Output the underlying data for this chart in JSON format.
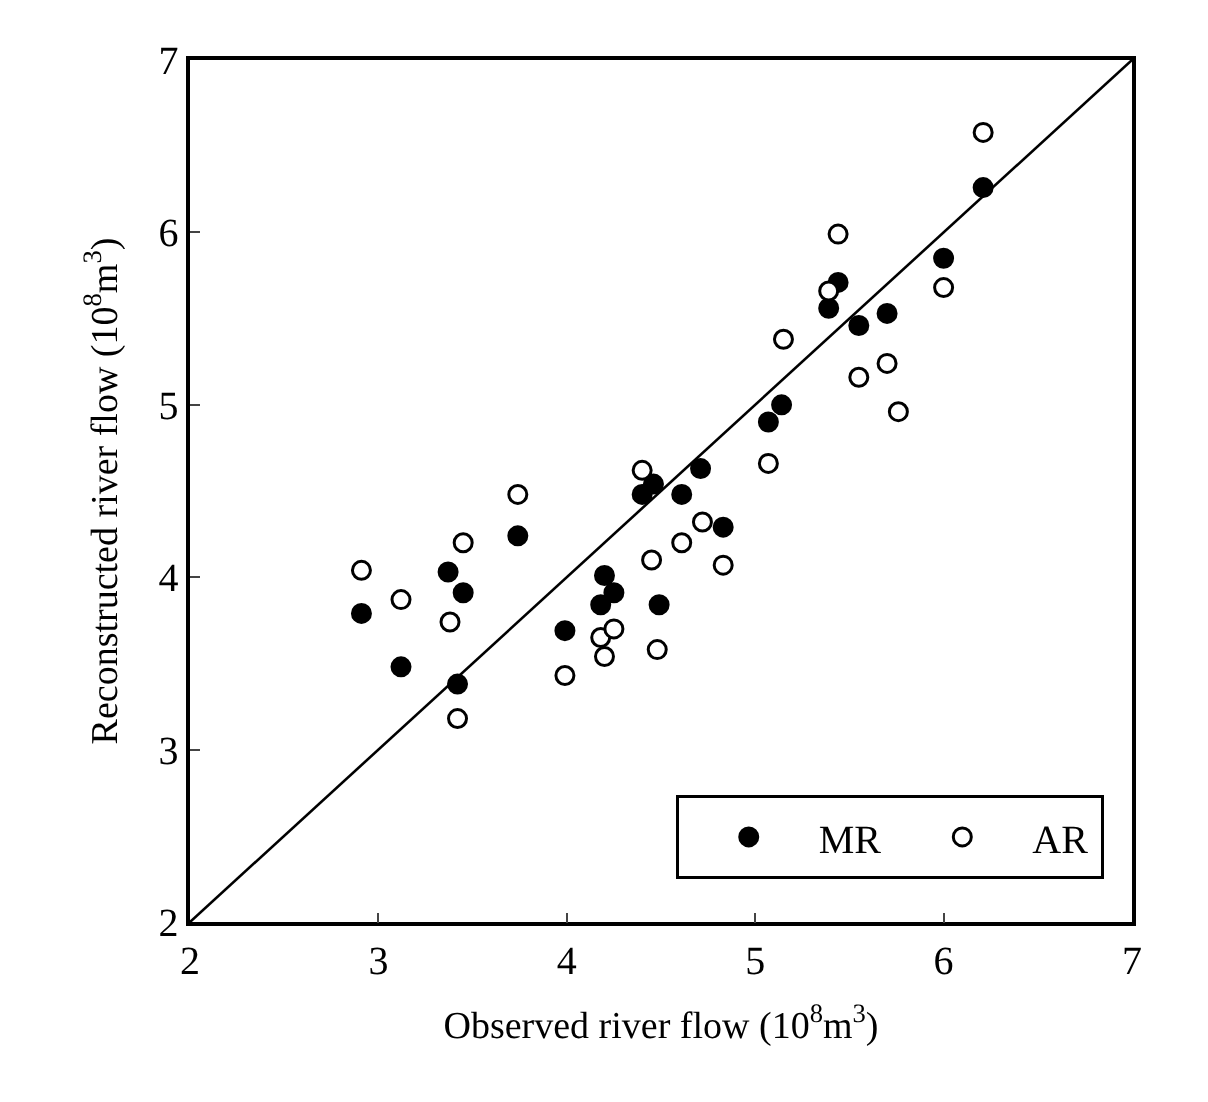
{
  "chart_data": {
    "type": "scatter",
    "xlabel": "Observed river flow (10$^{8}$m$^{3}$)",
    "ylabel": "Reconstructed river flow (10$^{8}$m$^{3}$)",
    "xlim": [
      2,
      7
    ],
    "ylim": [
      2,
      7
    ],
    "xticks": [
      2,
      3,
      4,
      5,
      6,
      7
    ],
    "yticks": [
      2,
      3,
      4,
      5,
      6,
      7
    ],
    "legend": "bottom right",
    "marker": "circle",
    "series": [
      {
        "name": "MR",
        "color": "#000000",
        "x": [
          2.91,
          3.12,
          3.37,
          3.45,
          3.42,
          3.74,
          3.99,
          4.2,
          4.18,
          4.25,
          4.49,
          4.4,
          4.46,
          4.61,
          4.71,
          4.83,
          5.07,
          5.14,
          5.39,
          5.44,
          5.55,
          5.7,
          6.0,
          6.21
        ],
        "values": [
          3.79,
          3.48,
          4.03,
          3.91,
          3.38,
          4.24,
          3.69,
          4.01,
          3.84,
          3.91,
          3.84,
          4.48,
          4.54,
          4.48,
          4.63,
          4.29,
          4.9,
          5.0,
          5.56,
          5.71,
          5.46,
          5.53,
          5.85,
          6.26
        ]
      },
      {
        "name": "AR",
        "color": "#ffffff",
        "x": [
          2.91,
          3.12,
          3.38,
          3.45,
          3.42,
          3.74,
          3.99,
          4.18,
          4.25,
          4.2,
          4.48,
          4.45,
          4.4,
          4.61,
          4.72,
          4.83,
          5.07,
          5.15,
          5.39,
          5.44,
          5.55,
          5.7,
          5.76,
          6.0,
          6.21
        ],
        "values": [
          4.04,
          3.87,
          3.74,
          4.2,
          3.18,
          4.48,
          3.43,
          3.65,
          3.7,
          3.54,
          3.58,
          4.1,
          4.62,
          4.2,
          4.32,
          4.07,
          4.66,
          5.38,
          5.66,
          5.99,
          5.16,
          5.24,
          4.96,
          5.68,
          6.58
        ]
      },
      {
        "type": "line",
        "color": "#000000",
        "x": [
          2,
          7
        ],
        "values": [
          2,
          7
        ],
        "marker": "none"
      }
    ]
  }
}
